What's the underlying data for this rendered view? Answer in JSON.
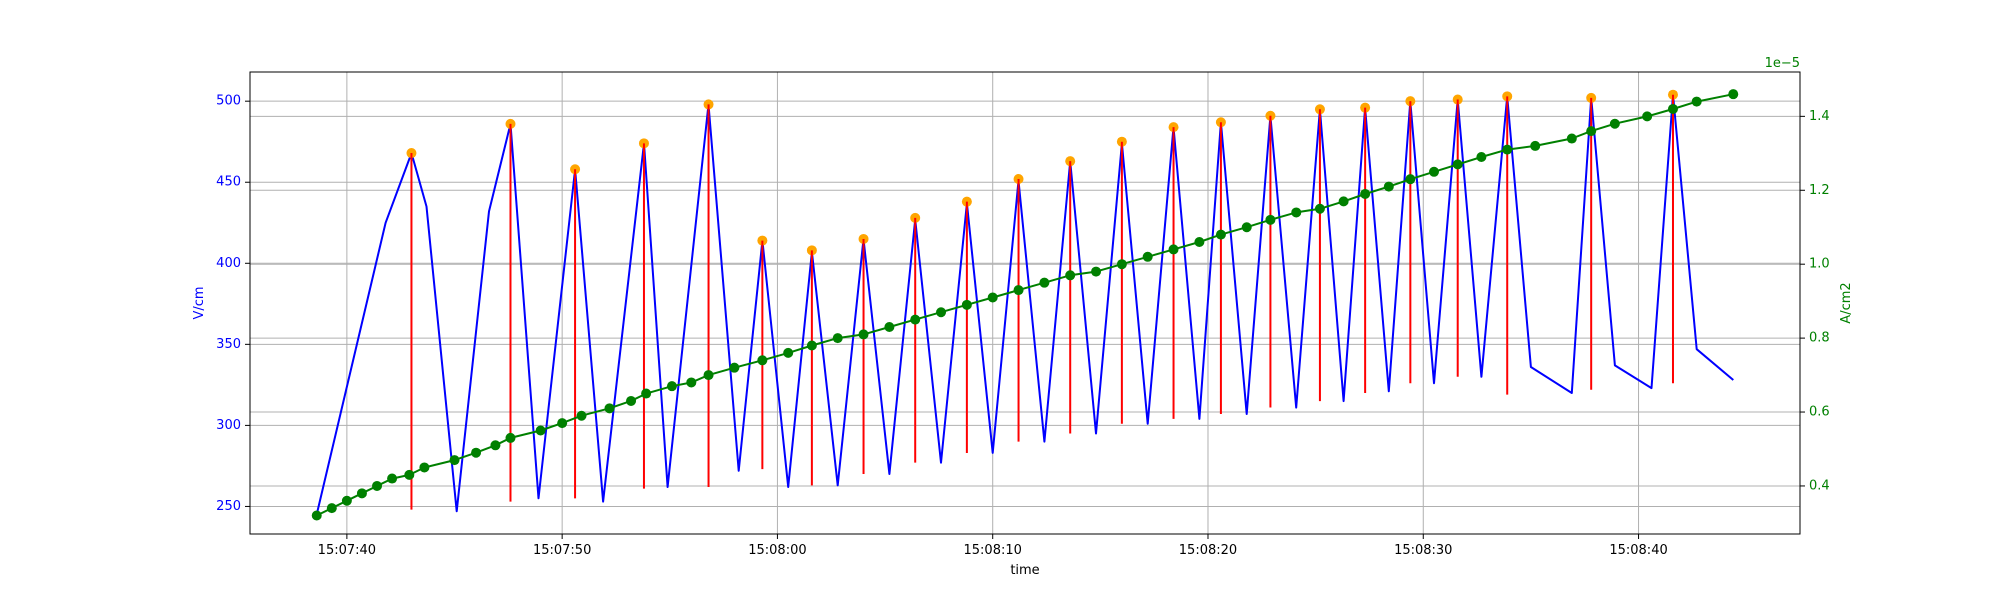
{
  "chart_data": {
    "type": "line",
    "xlabel": "time",
    "ylabel_left": "V/cm",
    "ylabel_right": "A/cm2",
    "right_axis_offset_text": "1e−5",
    "grid": true,
    "x_range": [
      "15:07:35.5",
      "15:08:47.5"
    ],
    "x_ticks": [
      "15:07:40",
      "15:07:50",
      "15:08:00",
      "15:08:10",
      "15:08:20",
      "15:08:30",
      "15:08:40"
    ],
    "ylim_left": [
      233,
      518
    ],
    "yticks_left": [
      250,
      300,
      350,
      400,
      450,
      500
    ],
    "ylim_right": [
      0.27,
      1.52
    ],
    "yticks_right": [
      0.4,
      0.6,
      0.8,
      1.0,
      1.2,
      1.4
    ],
    "colors": {
      "voltage": "#0000ff",
      "peaks": "#ffa500",
      "drops": "#ff0000",
      "current": "#008000"
    },
    "series": [
      {
        "axis": "left",
        "color": "#0000ff",
        "style": "line",
        "points": [
          [
            "15:07:38.6",
            245
          ],
          [
            "15:07:41.8",
            425
          ],
          [
            "15:07:43.0",
            468
          ],
          [
            "15:07:43.7",
            435
          ],
          [
            "15:07:45.1",
            247
          ],
          [
            "15:07:46.6",
            432
          ],
          [
            "15:07:47.6",
            486
          ],
          [
            "15:07:48.9",
            255
          ],
          [
            "15:07:50.6",
            458
          ],
          [
            "15:07:51.9",
            253
          ],
          [
            "15:07:53.8",
            474
          ],
          [
            "15:07:54.9",
            262
          ],
          [
            "15:07:56.8",
            498
          ],
          [
            "15:07:58.2",
            272
          ],
          [
            "15:07:59.3",
            414
          ],
          [
            "15:08:00.5",
            262
          ],
          [
            "15:08:01.6",
            407
          ],
          [
            "15:08:02.8",
            263
          ],
          [
            "15:08:04.0",
            415
          ],
          [
            "15:08:05.2",
            270
          ],
          [
            "15:08:06.4",
            427
          ],
          [
            "15:08:07.6",
            277
          ],
          [
            "15:08:08.8",
            437
          ],
          [
            "15:08:10.0",
            283
          ],
          [
            "15:08:11.2",
            451
          ],
          [
            "15:08:12.4",
            290
          ],
          [
            "15:08:13.6",
            463
          ],
          [
            "15:08:14.8",
            295
          ],
          [
            "15:08:16.0",
            474
          ],
          [
            "15:08:17.2",
            301
          ],
          [
            "15:08:18.4",
            484
          ],
          [
            "15:08:19.6",
            304
          ],
          [
            "15:08:20.6",
            487
          ],
          [
            "15:08:21.8",
            307
          ],
          [
            "15:08:22.9",
            491
          ],
          [
            "15:08:24.1",
            311
          ],
          [
            "15:08:25.2",
            495
          ],
          [
            "15:08:26.3",
            315
          ],
          [
            "15:08:27.3",
            496
          ],
          [
            "15:08:28.4",
            321
          ],
          [
            "15:08:29.4",
            500
          ],
          [
            "15:08:30.5",
            326
          ],
          [
            "15:08:31.6",
            501
          ],
          [
            "15:08:32.7",
            330
          ],
          [
            "15:08:33.9",
            503
          ],
          [
            "15:08:35.0",
            336
          ],
          [
            "15:08:36.9",
            320
          ],
          [
            "15:08:37.8",
            502
          ],
          [
            "15:08:38.9",
            337
          ],
          [
            "15:08:40.6",
            323
          ],
          [
            "15:08:41.6",
            504
          ],
          [
            "15:08:42.7",
            347
          ],
          [
            "15:08:44.4",
            328
          ]
        ]
      },
      {
        "axis": "left",
        "color": "#ffa500",
        "style": "markers",
        "points": [
          [
            "15:07:43.0",
            468
          ],
          [
            "15:07:47.6",
            486
          ],
          [
            "15:07:50.6",
            458
          ],
          [
            "15:07:53.8",
            474
          ],
          [
            "15:07:56.8",
            498
          ],
          [
            "15:07:59.3",
            414
          ],
          [
            "15:08:01.6",
            408
          ],
          [
            "15:08:04.0",
            415
          ],
          [
            "15:08:06.4",
            428
          ],
          [
            "15:08:08.8",
            438
          ],
          [
            "15:08:11.2",
            452
          ],
          [
            "15:08:13.6",
            463
          ],
          [
            "15:08:16.0",
            475
          ],
          [
            "15:08:18.4",
            484
          ],
          [
            "15:08:20.6",
            487
          ],
          [
            "15:08:22.9",
            491
          ],
          [
            "15:08:25.2",
            495
          ],
          [
            "15:08:27.3",
            496
          ],
          [
            "15:08:29.4",
            500
          ],
          [
            "15:08:31.6",
            501
          ],
          [
            "15:08:33.9",
            503
          ],
          [
            "15:08:37.8",
            502
          ],
          [
            "15:08:41.6",
            504
          ]
        ]
      },
      {
        "axis": "left",
        "color": "#ff0000",
        "style": "vlines",
        "points": [
          [
            "15:07:43.0",
            248,
            468
          ],
          [
            "15:07:47.6",
            253,
            486
          ],
          [
            "15:07:50.6",
            255,
            458
          ],
          [
            "15:07:53.8",
            261,
            474
          ],
          [
            "15:07:56.8",
            262,
            498
          ],
          [
            "15:07:59.3",
            273,
            414
          ],
          [
            "15:08:01.6",
            263,
            408
          ],
          [
            "15:08:04.0",
            270,
            415
          ],
          [
            "15:08:06.4",
            277,
            428
          ],
          [
            "15:08:08.8",
            283,
            438
          ],
          [
            "15:08:11.2",
            290,
            452
          ],
          [
            "15:08:13.6",
            295,
            463
          ],
          [
            "15:08:16.0",
            301,
            475
          ],
          [
            "15:08:18.4",
            304,
            484
          ],
          [
            "15:08:20.6",
            307,
            487
          ],
          [
            "15:08:22.9",
            311,
            491
          ],
          [
            "15:08:25.2",
            315,
            495
          ],
          [
            "15:08:27.3",
            320,
            496
          ],
          [
            "15:08:29.4",
            326,
            500
          ],
          [
            "15:08:31.6",
            330,
            501
          ],
          [
            "15:08:33.9",
            319,
            503
          ],
          [
            "15:08:37.8",
            322,
            502
          ],
          [
            "15:08:41.6",
            326,
            504
          ]
        ]
      },
      {
        "axis": "right",
        "color": "#008000",
        "style": "line-markers",
        "points": [
          [
            "15:07:38.6",
            0.32
          ],
          [
            "15:07:39.3",
            0.34
          ],
          [
            "15:07:40.0",
            0.36
          ],
          [
            "15:07:40.7",
            0.38
          ],
          [
            "15:07:41.4",
            0.4
          ],
          [
            "15:07:42.1",
            0.42
          ],
          [
            "15:07:42.9",
            0.43
          ],
          [
            "15:07:43.6",
            0.45
          ],
          [
            "15:07:45.0",
            0.47
          ],
          [
            "15:07:46.0",
            0.49
          ],
          [
            "15:07:46.9",
            0.51
          ],
          [
            "15:07:47.6",
            0.53
          ],
          [
            "15:07:49.0",
            0.55
          ],
          [
            "15:07:50.0",
            0.57
          ],
          [
            "15:07:50.9",
            0.59
          ],
          [
            "15:07:52.2",
            0.61
          ],
          [
            "15:07:53.2",
            0.63
          ],
          [
            "15:07:53.9",
            0.65
          ],
          [
            "15:07:55.1",
            0.67
          ],
          [
            "15:07:56.0",
            0.68
          ],
          [
            "15:07:56.8",
            0.7
          ],
          [
            "15:07:58.0",
            0.72
          ],
          [
            "15:07:59.3",
            0.74
          ],
          [
            "15:08:00.5",
            0.76
          ],
          [
            "15:08:01.6",
            0.78
          ],
          [
            "15:08:02.8",
            0.8
          ],
          [
            "15:08:04.0",
            0.81
          ],
          [
            "15:08:05.2",
            0.83
          ],
          [
            "15:08:06.4",
            0.85
          ],
          [
            "15:08:07.6",
            0.87
          ],
          [
            "15:08:08.8",
            0.89
          ],
          [
            "15:08:10.0",
            0.91
          ],
          [
            "15:08:11.2",
            0.93
          ],
          [
            "15:08:12.4",
            0.95
          ],
          [
            "15:08:13.6",
            0.97
          ],
          [
            "15:08:14.8",
            0.98
          ],
          [
            "15:08:16.0",
            1.0
          ],
          [
            "15:08:17.2",
            1.02
          ],
          [
            "15:08:18.4",
            1.04
          ],
          [
            "15:08:19.6",
            1.06
          ],
          [
            "15:08:20.6",
            1.08
          ],
          [
            "15:08:21.8",
            1.1
          ],
          [
            "15:08:22.9",
            1.12
          ],
          [
            "15:08:24.1",
            1.14
          ],
          [
            "15:08:25.2",
            1.15
          ],
          [
            "15:08:26.3",
            1.17
          ],
          [
            "15:08:27.3",
            1.19
          ],
          [
            "15:08:28.4",
            1.21
          ],
          [
            "15:08:29.4",
            1.23
          ],
          [
            "15:08:30.5",
            1.25
          ],
          [
            "15:08:31.6",
            1.27
          ],
          [
            "15:08:32.7",
            1.29
          ],
          [
            "15:08:33.9",
            1.31
          ],
          [
            "15:08:35.2",
            1.32
          ],
          [
            "15:08:36.9",
            1.34
          ],
          [
            "15:08:37.8",
            1.36
          ],
          [
            "15:08:38.9",
            1.38
          ],
          [
            "15:08:40.4",
            1.4
          ],
          [
            "15:08:41.6",
            1.42
          ],
          [
            "15:08:42.7",
            1.44
          ],
          [
            "15:08:44.4",
            1.46
          ]
        ]
      }
    ]
  }
}
